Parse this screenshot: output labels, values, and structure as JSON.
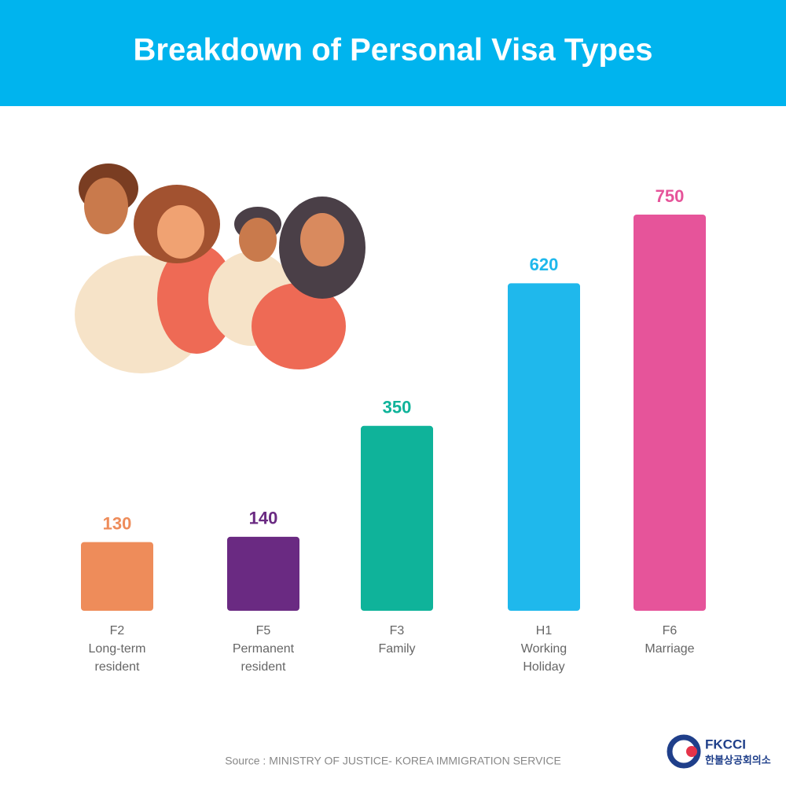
{
  "chart_data": {
    "type": "bar",
    "title": "Breakdown of Personal Visa Types",
    "categories": [
      [
        "F2",
        "Long-term",
        "resident"
      ],
      [
        "F5",
        "Permanent",
        "resident"
      ],
      [
        "F3",
        "Family"
      ],
      [
        "H1",
        "Working",
        "Holiday"
      ],
      [
        "F6",
        "Marriage"
      ]
    ],
    "values": [
      130,
      140,
      350,
      620,
      750
    ],
    "colors": [
      "#ee8c5a",
      "#6a2a82",
      "#0fb39a",
      "#1fb8ec",
      "#e6549a"
    ],
    "source": "Source : MINISTRY OF JUSTICE- KOREA IMMIGRATION SERVICE"
  },
  "logo": {
    "name": "FKCCI",
    "subtitle": "한불상공회의소"
  }
}
